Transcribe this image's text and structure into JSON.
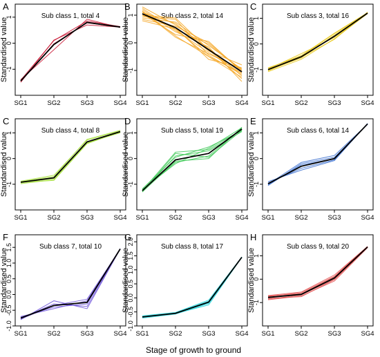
{
  "figure": {
    "ylabel": "Standardised value",
    "xlabel": "Stage of growth to ground"
  },
  "chart_data": [
    {
      "type": "line",
      "letter": "A",
      "title": "Sub class 1, total 4",
      "color": "#c8102e",
      "categories": [
        "SG1",
        "SG2",
        "SG3",
        "SG4"
      ],
      "ylim": [
        -2,
        1.5
      ],
      "yticks": [
        -1,
        0,
        1
      ],
      "mean": [
        -1.45,
        -0.05,
        0.8,
        0.62
      ],
      "series": [
        [
          -1.5,
          0.12,
          0.7,
          0.62
        ],
        [
          -1.4,
          -0.25,
          0.92,
          0.6
        ],
        [
          -1.42,
          0.1,
          0.85,
          0.64
        ],
        [
          -1.47,
          -0.02,
          0.78,
          0.62
        ]
      ]
    },
    {
      "type": "line",
      "letter": "B",
      "title": "Sub class 2, total 14",
      "color": "#f5a623",
      "categories": [
        "SG1",
        "SG2",
        "SG3",
        "SG4"
      ],
      "ylim": [
        -1.9,
        1.4
      ],
      "yticks": [
        -1,
        0,
        1
      ],
      "mean": [
        1.05,
        0.55,
        -0.25,
        -1.05
      ],
      "series": [
        [
          1.25,
          0.45,
          -0.35,
          -1.1
        ],
        [
          0.9,
          0.75,
          -0.1,
          -0.95
        ],
        [
          1.15,
          0.25,
          -0.5,
          -1.25
        ],
        [
          0.85,
          0.6,
          0.0,
          -1.0
        ],
        [
          1.1,
          0.7,
          -0.3,
          -0.8
        ],
        [
          1.2,
          0.4,
          -0.15,
          -1.4
        ],
        [
          0.95,
          0.85,
          -0.45,
          -1.15
        ],
        [
          1.05,
          0.3,
          0.05,
          -1.05
        ],
        [
          1.0,
          0.55,
          -0.6,
          -0.9
        ],
        [
          1.3,
          0.65,
          -0.2,
          -1.2
        ],
        [
          0.8,
          0.5,
          -0.05,
          -1.0
        ],
        [
          1.15,
          0.2,
          -0.4,
          -0.95
        ],
        [
          1.0,
          0.9,
          -0.25,
          -1.3
        ],
        [
          1.1,
          0.5,
          -0.5,
          -1.1
        ]
      ]
    },
    {
      "type": "line",
      "letter": "C",
      "title": "Sub class 3, total 16",
      "color": "#e8c81a",
      "categories": [
        "SG1",
        "SG2",
        "SG3",
        "SG4"
      ],
      "ylim": [
        -2,
        1.55
      ],
      "yticks": [
        -1,
        0,
        1
      ],
      "mean": [
        -1.0,
        -0.5,
        0.3,
        1.2
      ],
      "series": [
        [
          -1.08,
          -0.6,
          0.2,
          1.18
        ],
        [
          -0.95,
          -0.45,
          0.42,
          1.22
        ],
        [
          -1.02,
          -0.55,
          0.35,
          1.2
        ],
        [
          -0.98,
          -0.38,
          0.25,
          1.19
        ],
        [
          -1.05,
          -0.52,
          0.18,
          1.24
        ],
        [
          -0.93,
          -0.48,
          0.4,
          1.21
        ]
      ]
    },
    {
      "type": "line",
      "letter": "C",
      "title": "Sub class 4, total 8",
      "color": "#a8e040",
      "categories": [
        "SG1",
        "SG2",
        "SG3",
        "SG4"
      ],
      "ylim": [
        -2,
        1.55
      ],
      "yticks": [
        -1,
        0,
        1
      ],
      "mean": [
        -0.92,
        -0.75,
        0.65,
        1.05
      ],
      "series": [
        [
          -0.98,
          -0.82,
          0.6,
          1.02
        ],
        [
          -0.88,
          -0.65,
          0.72,
          1.08
        ],
        [
          -0.95,
          -0.78,
          0.62,
          1.0
        ],
        [
          -0.9,
          -0.7,
          0.75,
          1.1
        ],
        [
          -0.93,
          -0.85,
          0.58,
          1.04
        ]
      ]
    },
    {
      "type": "line",
      "letter": "D",
      "title": "Sub class 5, total 19",
      "color": "#3cc855",
      "categories": [
        "SG1",
        "SG2",
        "SG3",
        "SG4"
      ],
      "ylim": [
        -2,
        1.55
      ],
      "yticks": [
        -1,
        0,
        1
      ],
      "mean": [
        -1.25,
        -0.05,
        0.2,
        1.15
      ],
      "series": [
        [
          -1.3,
          0.2,
          0.05,
          1.1
        ],
        [
          -1.2,
          -0.2,
          0.4,
          1.2
        ],
        [
          -1.28,
          0.1,
          0.3,
          1.05
        ],
        [
          -1.22,
          -0.15,
          0.1,
          1.18
        ],
        [
          -1.25,
          0.25,
          0.35,
          1.12
        ],
        [
          -1.3,
          -0.1,
          0.0,
          1.22
        ],
        [
          -1.18,
          0.05,
          0.45,
          1.08
        ]
      ]
    },
    {
      "type": "line",
      "letter": "E",
      "title": "Sub class 6, total 14",
      "color": "#3a6fd0",
      "categories": [
        "SG1",
        "SG2",
        "SG3",
        "SG4"
      ],
      "ylim": [
        -2,
        1.55
      ],
      "yticks": [
        -1,
        0,
        1
      ],
      "mean": [
        -0.98,
        -0.3,
        0.0,
        1.35
      ],
      "series": [
        [
          -1.05,
          -0.2,
          0.05,
          1.33
        ],
        [
          -0.9,
          -0.45,
          -0.08,
          1.37
        ],
        [
          -1.0,
          -0.15,
          0.12,
          1.34
        ],
        [
          -0.95,
          -0.38,
          -0.05,
          1.36
        ],
        [
          -1.02,
          -0.25,
          0.0,
          1.35
        ]
      ]
    },
    {
      "type": "line",
      "letter": "F",
      "title": "Sub class 7, total 10",
      "color": "#6a4fd8",
      "categories": [
        "SG1",
        "SG2",
        "SG3",
        "SG4"
      ],
      "ylim": [
        -1.0,
        1.9
      ],
      "yticks": [
        -1.0,
        -0.5,
        0.0,
        0.5,
        1.0,
        1.5
      ],
      "mean": [
        -0.75,
        -0.35,
        -0.25,
        1.45
      ],
      "series": [
        [
          -0.8,
          -0.2,
          -0.45,
          1.45
        ],
        [
          -0.7,
          -0.45,
          -0.2,
          1.46
        ],
        [
          -0.78,
          -0.35,
          -0.15,
          1.44
        ],
        [
          -0.72,
          -0.4,
          -0.3,
          1.45
        ],
        [
          -0.76,
          -0.3,
          -0.38,
          1.45
        ]
      ]
    },
    {
      "type": "line",
      "letter": "G",
      "title": "Sub class 8, total 17",
      "color": "#20d0d8",
      "categories": [
        "SG1",
        "SG2",
        "SG3",
        "SG4"
      ],
      "ylim": [
        -1.0,
        2.25
      ],
      "yticks": [
        -1.0,
        -0.5,
        0.0,
        0.5,
        1.0,
        1.5,
        2.0
      ],
      "mean": [
        -0.68,
        -0.55,
        -0.15,
        1.45
      ],
      "series": [
        [
          -0.72,
          -0.58,
          -0.2,
          1.44
        ],
        [
          -0.64,
          -0.52,
          -0.08,
          1.46
        ],
        [
          -0.7,
          -0.56,
          -0.25,
          1.45
        ],
        [
          -0.66,
          -0.53,
          -0.12,
          1.45
        ],
        [
          -0.69,
          -0.55,
          -0.18,
          1.44
        ]
      ]
    },
    {
      "type": "line",
      "letter": "H",
      "title": "Sub class 9, total 20",
      "color": "#e25050",
      "categories": [
        "SG1",
        "SG2",
        "SG3",
        "SG4"
      ],
      "ylim": [
        -2,
        1.9
      ],
      "yticks": [
        -1,
        0,
        1
      ],
      "mean": [
        -0.78,
        -0.65,
        0.05,
        1.38
      ],
      "series": [
        [
          -0.88,
          -0.72,
          -0.08,
          1.35
        ],
        [
          -0.7,
          -0.55,
          0.18,
          1.4
        ],
        [
          -0.82,
          -0.75,
          -0.02,
          1.36
        ],
        [
          -0.74,
          -0.58,
          0.12,
          1.4
        ],
        [
          -0.85,
          -0.68,
          0.0,
          1.37
        ],
        [
          -0.72,
          -0.62,
          0.1,
          1.39
        ]
      ]
    }
  ]
}
